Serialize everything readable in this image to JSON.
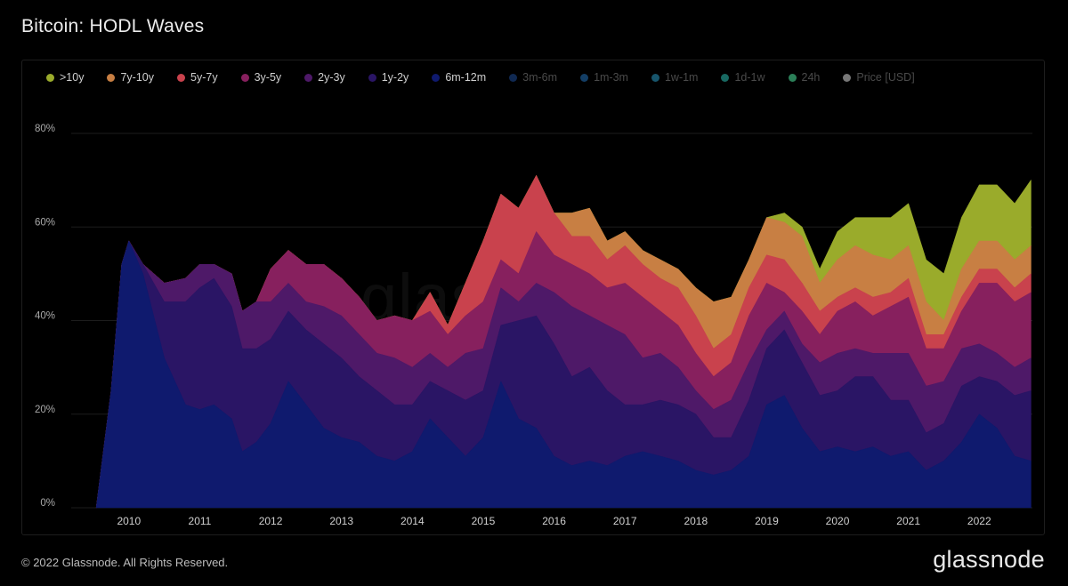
{
  "header": {
    "title": "Bitcoin: HODL Waves"
  },
  "footer": {
    "copyright": "© 2022 Glassnode. All Rights Reserved.",
    "brand": "glassnode"
  },
  "watermark": "glassnode",
  "chart_data": {
    "type": "area",
    "stacked": true,
    "y_unit": "%",
    "ylim": [
      0,
      80
    ],
    "y_ticks": [
      0,
      20,
      40,
      60,
      80
    ],
    "y_tick_labels": [
      "0%",
      "20%",
      "40%",
      "60%",
      "80%"
    ],
    "xlim": [
      2009.5,
      2022.75
    ],
    "x_ticks": [
      2010,
      2011,
      2012,
      2013,
      2014,
      2015,
      2016,
      2017,
      2018,
      2019,
      2020,
      2021,
      2022
    ],
    "x_tick_labels": [
      "2010",
      "2011",
      "2012",
      "2013",
      "2014",
      "2015",
      "2016",
      "2017",
      "2018",
      "2019",
      "2020",
      "2021",
      "2022"
    ],
    "grid": true,
    "legend_position": "top-left",
    "legend": [
      {
        "name": ">10y",
        "color": "#9aab2b",
        "active": true
      },
      {
        "name": "7y-10y",
        "color": "#c87f43",
        "active": true
      },
      {
        "name": "5y-7y",
        "color": "#c9424d",
        "active": true
      },
      {
        "name": "3y-5y",
        "color": "#87205e",
        "active": true
      },
      {
        "name": "2y-3y",
        "color": "#4e1968",
        "active": true
      },
      {
        "name": "1y-2y",
        "color": "#2a1565",
        "active": true
      },
      {
        "name": "6m-12m",
        "color": "#0f1a6e",
        "active": true
      },
      {
        "name": "3m-6m",
        "color": "#1e4a96",
        "active": false
      },
      {
        "name": "1m-3m",
        "color": "#2371b8",
        "active": false
      },
      {
        "name": "1w-1m",
        "color": "#2a9bc4",
        "active": false
      },
      {
        "name": "1d-1w",
        "color": "#2cc0b3",
        "active": false
      },
      {
        "name": "24h",
        "color": "#4ee8a0",
        "active": false
      },
      {
        "name": "Price [USD]",
        "color": "#d9d9d9",
        "active": false
      }
    ],
    "x": [
      2009.54,
      2009.75,
      2009.9,
      2010.0,
      2010.2,
      2010.5,
      2010.8,
      2011.0,
      2011.2,
      2011.45,
      2011.6,
      2011.8,
      2012.0,
      2012.25,
      2012.5,
      2012.75,
      2013.0,
      2013.25,
      2013.5,
      2013.75,
      2014.0,
      2014.25,
      2014.5,
      2014.75,
      2015.0,
      2015.25,
      2015.5,
      2015.75,
      2016.0,
      2016.25,
      2016.5,
      2016.75,
      2017.0,
      2017.25,
      2017.5,
      2017.75,
      2018.0,
      2018.25,
      2018.5,
      2018.75,
      2019.0,
      2019.25,
      2019.5,
      2019.75,
      2020.0,
      2020.25,
      2020.5,
      2020.75,
      2021.0,
      2021.25,
      2021.5,
      2021.75,
      2022.0,
      2022.25,
      2022.5,
      2022.73
    ],
    "series": [
      {
        "name": "6m-12m",
        "values": [
          0,
          25,
          52,
          57,
          50,
          32,
          22,
          21,
          22,
          19,
          12,
          14,
          18,
          27,
          22,
          17,
          15,
          14,
          11,
          10,
          12,
          19,
          15,
          11,
          15,
          27,
          19,
          17,
          11,
          9,
          10,
          9,
          11,
          12,
          11,
          10,
          8,
          7,
          8,
          11,
          22,
          24,
          17,
          12,
          13,
          12,
          13,
          11,
          12,
          8,
          10,
          14,
          20,
          17,
          11,
          10
        ]
      },
      {
        "name": "1y-2y",
        "values": [
          0,
          0,
          0,
          0,
          2,
          12,
          22,
          26,
          27,
          24,
          22,
          20,
          18,
          15,
          16,
          18,
          17,
          14,
          14,
          12,
          10,
          8,
          10,
          12,
          10,
          12,
          21,
          24,
          24,
          19,
          20,
          16,
          11,
          10,
          12,
          12,
          12,
          8,
          7,
          12,
          12,
          14,
          14,
          12,
          12,
          16,
          15,
          12,
          11,
          8,
          8,
          12,
          8,
          10,
          13,
          15
        ]
      },
      {
        "name": "2y-3y",
        "values": [
          0,
          0,
          0,
          0,
          0,
          4,
          5,
          5,
          3,
          7,
          8,
          10,
          8,
          6,
          6,
          8,
          9,
          9,
          8,
          10,
          8,
          6,
          5,
          10,
          9,
          8,
          4,
          7,
          11,
          15,
          11,
          14,
          15,
          10,
          10,
          8,
          5,
          6,
          8,
          8,
          4,
          4,
          4,
          7,
          8,
          6,
          5,
          10,
          10,
          10,
          9,
          8,
          7,
          6,
          6,
          7
        ]
      },
      {
        "name": "3y-5y",
        "values": [
          0,
          0,
          0,
          0,
          0,
          0,
          0,
          0,
          0,
          0,
          0,
          0,
          7,
          7,
          8,
          9,
          8,
          8,
          7,
          9,
          10,
          9,
          7,
          8,
          10,
          6,
          6,
          11,
          8,
          9,
          9,
          8,
          11,
          13,
          9,
          9,
          8,
          7,
          8,
          10,
          10,
          4,
          7,
          6,
          9,
          10,
          8,
          10,
          12,
          8,
          7,
          8,
          13,
          15,
          14,
          14
        ]
      },
      {
        "name": "5y-7y",
        "values": [
          0,
          0,
          0,
          0,
          0,
          0,
          0,
          0,
          0,
          0,
          0,
          0,
          0,
          0,
          0,
          0,
          0,
          0,
          0,
          0,
          0,
          4,
          2,
          7,
          13,
          14,
          14,
          12,
          9,
          6,
          8,
          6,
          8,
          7,
          7,
          8,
          8,
          6,
          6,
          6,
          6,
          7,
          6,
          5,
          3,
          3,
          4,
          3,
          4,
          3,
          3,
          3,
          3,
          3,
          3,
          4
        ]
      },
      {
        "name": "7y-10y",
        "values": [
          0,
          0,
          0,
          0,
          0,
          0,
          0,
          0,
          0,
          0,
          0,
          0,
          0,
          0,
          0,
          0,
          0,
          0,
          0,
          0,
          0,
          0,
          0,
          0,
          0,
          0,
          0,
          0,
          0,
          5,
          6,
          4,
          3,
          3,
          4,
          4,
          6,
          10,
          8,
          6,
          8,
          8,
          10,
          6,
          8,
          9,
          9,
          7,
          7,
          7,
          3,
          6,
          6,
          6,
          6,
          6
        ]
      },
      {
        "name": ">10y",
        "values": [
          0,
          0,
          0,
          0,
          0,
          0,
          0,
          0,
          0,
          0,
          0,
          0,
          0,
          0,
          0,
          0,
          0,
          0,
          0,
          0,
          0,
          0,
          0,
          0,
          0,
          0,
          0,
          0,
          0,
          0,
          0,
          0,
          0,
          0,
          0,
          0,
          0,
          0,
          0,
          0,
          0,
          2,
          2,
          3,
          6,
          6,
          8,
          9,
          9,
          9,
          10,
          11,
          12,
          12,
          12,
          14
        ]
      }
    ]
  }
}
